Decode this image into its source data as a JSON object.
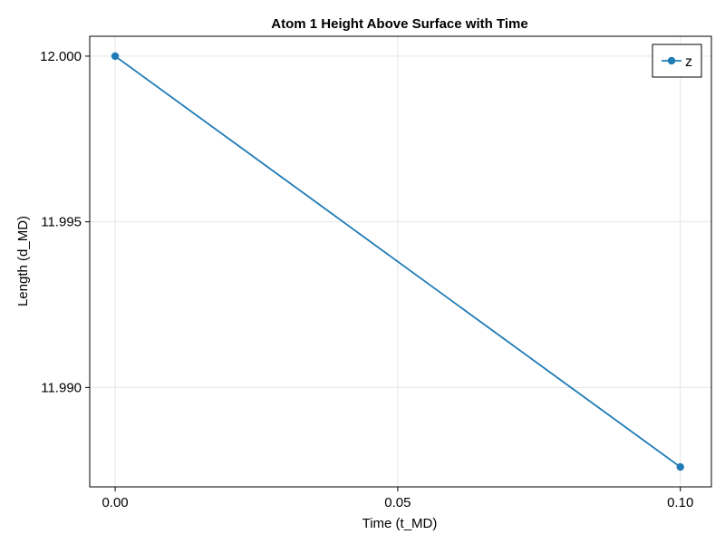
{
  "chart_data": {
    "type": "line",
    "title": "Atom 1 Height Above Surface with Time",
    "xlabel": "Time (t_MD)",
    "ylabel": "Length (d_MD)",
    "xlim": [
      -0.0045,
      0.1055
    ],
    "ylim": [
      11.987,
      12.0006
    ],
    "xticks": [
      0.0,
      0.05,
      0.1
    ],
    "xtick_labels": [
      "0.00",
      "0.05",
      "0.10"
    ],
    "yticks": [
      11.99,
      11.995,
      12.0
    ],
    "ytick_labels": [
      "11.990",
      "11.995",
      "12.000"
    ],
    "grid": true,
    "legend_position": "top-right",
    "series": [
      {
        "name": "z",
        "color": "#1f7bb6",
        "marker": "circle",
        "x": [
          0.0,
          0.1
        ],
        "y": [
          12.0,
          11.9876
        ]
      }
    ]
  }
}
